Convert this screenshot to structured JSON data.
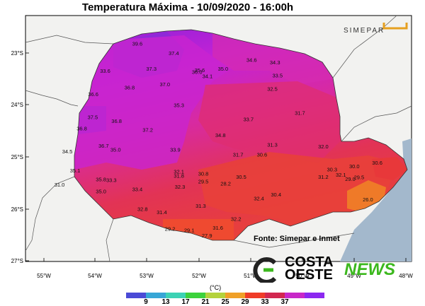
{
  "title": "Temperatura Máxima - 10/09/2020 - 16:00h",
  "logo_text": "SIMEPAR",
  "source": "Fonte:  Simepar e Inmet",
  "brand": {
    "line1": "COSTA",
    "line2": "OESTE",
    "line3": "NEWS"
  },
  "colorbar": {
    "unit": "(°C)",
    "labels": [
      "9",
      "13",
      "17",
      "21",
      "25",
      "29",
      "33",
      "37"
    ],
    "colors": [
      "#4b4bd6",
      "#37a6d6",
      "#3cd2b4",
      "#3cd23c",
      "#b4d23c",
      "#f0a028",
      "#f03c28",
      "#d22850",
      "#c828c8",
      "#8c28f0"
    ]
  },
  "axes": {
    "lat_labels": [
      "23°S",
      "24°S",
      "25°S",
      "26°S",
      "27°S"
    ],
    "lon_labels": [
      "55°W",
      "54°W",
      "53°W",
      "52°W",
      "51°W",
      "50°W",
      "49°W",
      "48°W"
    ]
  },
  "stations": [
    {
      "v": "39.6",
      "lon": -53.2,
      "lat": -22.86
    },
    {
      "v": "37.4",
      "lon": -52.5,
      "lat": -23.04
    },
    {
      "v": "37.3",
      "lon": -52.93,
      "lat": -23.34
    },
    {
      "v": "35.6",
      "lon": -52.0,
      "lat": -23.37
    },
    {
      "v": "36.0",
      "lon": -52.05,
      "lat": -23.4
    },
    {
      "v": "35.0",
      "lon": -51.55,
      "lat": -23.34
    },
    {
      "v": "34.6",
      "lon": -51.0,
      "lat": -23.17
    },
    {
      "v": "34.3",
      "lon": -50.55,
      "lat": -23.22
    },
    {
      "v": "33.5",
      "lon": -50.5,
      "lat": -23.47
    },
    {
      "v": "33.6",
      "lon": -53.82,
      "lat": -23.38
    },
    {
      "v": "34.1",
      "lon": -51.85,
      "lat": -23.48
    },
    {
      "v": "36.8",
      "lon": -53.35,
      "lat": -23.7
    },
    {
      "v": "37.0",
      "lon": -52.67,
      "lat": -23.64
    },
    {
      "v": "36.6",
      "lon": -54.05,
      "lat": -23.83
    },
    {
      "v": "32.5",
      "lon": -50.6,
      "lat": -23.73
    },
    {
      "v": "35.3",
      "lon": -52.4,
      "lat": -24.04
    },
    {
      "v": "31.7",
      "lon": -50.07,
      "lat": -24.19
    },
    {
      "v": "37.5",
      "lon": -54.06,
      "lat": -24.27
    },
    {
      "v": "36.8",
      "lon": -53.6,
      "lat": -24.35
    },
    {
      "v": "33.7",
      "lon": -51.06,
      "lat": -24.31
    },
    {
      "v": "36.8",
      "lon": -54.27,
      "lat": -24.49
    },
    {
      "v": "37.2",
      "lon": -53.0,
      "lat": -24.52
    },
    {
      "v": "34.8",
      "lon": -51.6,
      "lat": -24.62
    },
    {
      "v": "31.3",
      "lon": -50.6,
      "lat": -24.8
    },
    {
      "v": "36.7",
      "lon": -53.85,
      "lat": -24.82
    },
    {
      "v": "35.0",
      "lon": -53.62,
      "lat": -24.9
    },
    {
      "v": "33.9",
      "lon": -52.47,
      "lat": -24.9
    },
    {
      "v": "32.0",
      "lon": -49.62,
      "lat": -24.84
    },
    {
      "v": "34.5",
      "lon": -54.55,
      "lat": -24.93
    },
    {
      "v": "31.7",
      "lon": -51.26,
      "lat": -24.99
    },
    {
      "v": "30.6",
      "lon": -50.8,
      "lat": -24.99
    },
    {
      "v": "30.0",
      "lon": -49.02,
      "lat": -25.22
    },
    {
      "v": "30.6",
      "lon": -48.58,
      "lat": -25.15
    },
    {
      "v": "32.1",
      "lon": -52.4,
      "lat": -25.32
    },
    {
      "v": "35.1",
      "lon": -54.4,
      "lat": -25.3
    },
    {
      "v": "30.3",
      "lon": -49.45,
      "lat": -25.28
    },
    {
      "v": "31.8",
      "lon": -52.4,
      "lat": -25.4
    },
    {
      "v": "30.8",
      "lon": -51.93,
      "lat": -25.36
    },
    {
      "v": "30.5",
      "lon": -51.2,
      "lat": -25.42
    },
    {
      "v": "31.2",
      "lon": -49.62,
      "lat": -25.42
    },
    {
      "v": "32.1",
      "lon": -49.28,
      "lat": -25.38
    },
    {
      "v": "29.0",
      "lon": -49.1,
      "lat": -25.46
    },
    {
      "v": "29.5",
      "lon": -48.93,
      "lat": -25.43
    },
    {
      "v": "35.8",
      "lon": -53.9,
      "lat": -25.47
    },
    {
      "v": "33.3",
      "lon": -53.7,
      "lat": -25.48
    },
    {
      "v": "29.5",
      "lon": -51.93,
      "lat": -25.51
    },
    {
      "v": "28.2",
      "lon": -51.5,
      "lat": -25.55
    },
    {
      "v": "31.0",
      "lon": -54.7,
      "lat": -25.57
    },
    {
      "v": "32.3",
      "lon": -52.38,
      "lat": -25.61
    },
    {
      "v": "33.4",
      "lon": -53.2,
      "lat": -25.66
    },
    {
      "v": "35.0",
      "lon": -53.9,
      "lat": -25.7
    },
    {
      "v": "30.4",
      "lon": -50.53,
      "lat": -25.76
    },
    {
      "v": "32.4",
      "lon": -50.86,
      "lat": -25.84
    },
    {
      "v": "26.0",
      "lon": -48.76,
      "lat": -25.86
    },
    {
      "v": "31.3",
      "lon": -51.98,
      "lat": -25.98
    },
    {
      "v": "32.8",
      "lon": -53.1,
      "lat": -26.04
    },
    {
      "v": "31.4",
      "lon": -52.73,
      "lat": -26.1
    },
    {
      "v": "32.2",
      "lon": -51.3,
      "lat": -26.23
    },
    {
      "v": "31.6",
      "lon": -51.65,
      "lat": -26.4
    },
    {
      "v": "29.2",
      "lon": -52.57,
      "lat": -26.42
    },
    {
      "v": "29.1",
      "lon": -52.2,
      "lat": -26.45
    },
    {
      "v": "27.9",
      "lon": -51.86,
      "lat": -26.55
    }
  ]
}
